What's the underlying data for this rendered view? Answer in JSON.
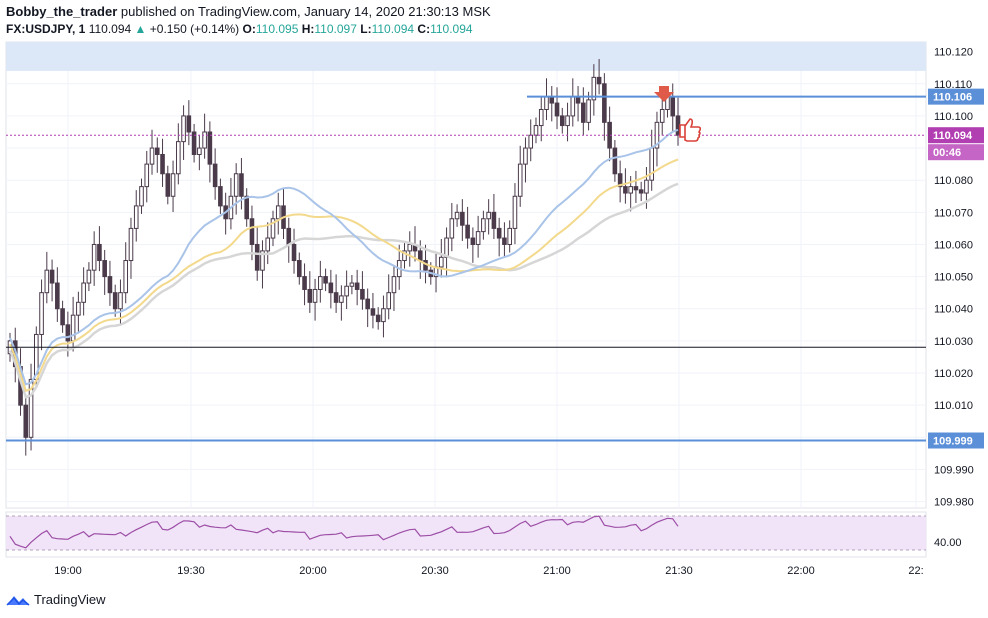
{
  "header": {
    "author": "Bobby_the_trader",
    "published": "published on TradingView.com, January 14, 2020 21:30:13 MSK",
    "symbol": "FX:USDJPY, 1",
    "last": "110.094",
    "change": "+0.150 (+0.14%)",
    "o_label": "O:",
    "o": "110.095",
    "h_label": "H:",
    "h": "110.097",
    "l_label": "L:",
    "l": "110.094",
    "c_label": "C:",
    "c": "110.094"
  },
  "footer": {
    "brand": "TradingView"
  },
  "colors": {
    "up": "#26a69a",
    "candle": "#4a3a4a",
    "ma_fast": "#a9c4e8",
    "ma_mid": "#f3d98c",
    "ma_slow": "#d6d6d6",
    "level": "#5b8fd8",
    "current": "#b13fb1",
    "zone": "#dce8f8",
    "rsi_band": "#f1e4f8",
    "rsi_line": "#9d4ea6",
    "marker": "#e05a4a"
  },
  "chart_data": {
    "type": "candlestick",
    "y_ticks": [
      "110.120",
      "110.110",
      "110.100",
      "110.090",
      "110.080",
      "110.070",
      "110.060",
      "110.050",
      "110.040",
      "110.030",
      "110.020",
      "110.010",
      "110.000",
      "109.990",
      "109.980"
    ],
    "ylim": [
      109.978,
      110.123
    ],
    "x_ticks": [
      "19:00",
      "19:30",
      "20:00",
      "20:30",
      "21:00",
      "21:30",
      "22:00",
      "22:"
    ],
    "price_labels": {
      "resistance": "110.106",
      "current": "110.094",
      "countdown": "00:46",
      "support": "109.999"
    },
    "levels": {
      "resistance": 110.106,
      "support": 109.999,
      "mid": 110.028,
      "current": 110.094
    },
    "supply_zone": [
      110.114,
      110.123
    ],
    "rsi_label": "40.00",
    "closes": [
      110.03,
      110.022,
      110.01,
      110.0,
      110.018,
      110.032,
      110.045,
      110.052,
      110.048,
      110.04,
      110.035,
      110.03,
      110.038,
      110.042,
      110.048,
      110.052,
      110.06,
      110.055,
      110.05,
      110.045,
      110.04,
      110.045,
      110.055,
      110.065,
      110.072,
      110.078,
      110.085,
      110.09,
      110.088,
      110.082,
      110.075,
      110.082,
      110.092,
      110.1,
      110.095,
      110.088,
      110.09,
      110.095,
      110.085,
      110.078,
      110.072,
      110.068,
      110.075,
      110.082,
      110.075,
      110.068,
      110.06,
      110.052,
      110.058,
      110.062,
      110.068,
      110.072,
      110.065,
      110.06,
      110.055,
      110.05,
      110.046,
      110.042,
      110.046,
      110.05,
      110.048,
      110.045,
      110.042,
      110.044,
      110.047,
      110.048,
      110.046,
      110.043,
      110.04,
      110.038,
      110.036,
      110.04,
      110.045,
      110.05,
      110.055,
      110.058,
      110.06,
      110.058,
      110.055,
      110.052,
      110.05,
      110.053,
      110.056,
      110.062,
      110.068,
      110.07,
      110.066,
      110.062,
      110.06,
      110.064,
      110.068,
      110.07,
      110.065,
      110.062,
      110.06,
      110.065,
      110.075,
      110.085,
      110.09,
      110.094,
      110.097,
      110.102,
      110.106,
      110.104,
      110.1,
      110.097,
      110.1,
      110.106,
      110.104,
      110.098,
      110.105,
      110.112,
      110.11,
      110.098,
      110.09,
      110.082,
      110.078,
      110.076,
      110.078,
      110.077,
      110.076,
      110.08,
      110.09,
      110.098,
      110.102,
      110.106,
      110.1,
      110.094
    ]
  }
}
